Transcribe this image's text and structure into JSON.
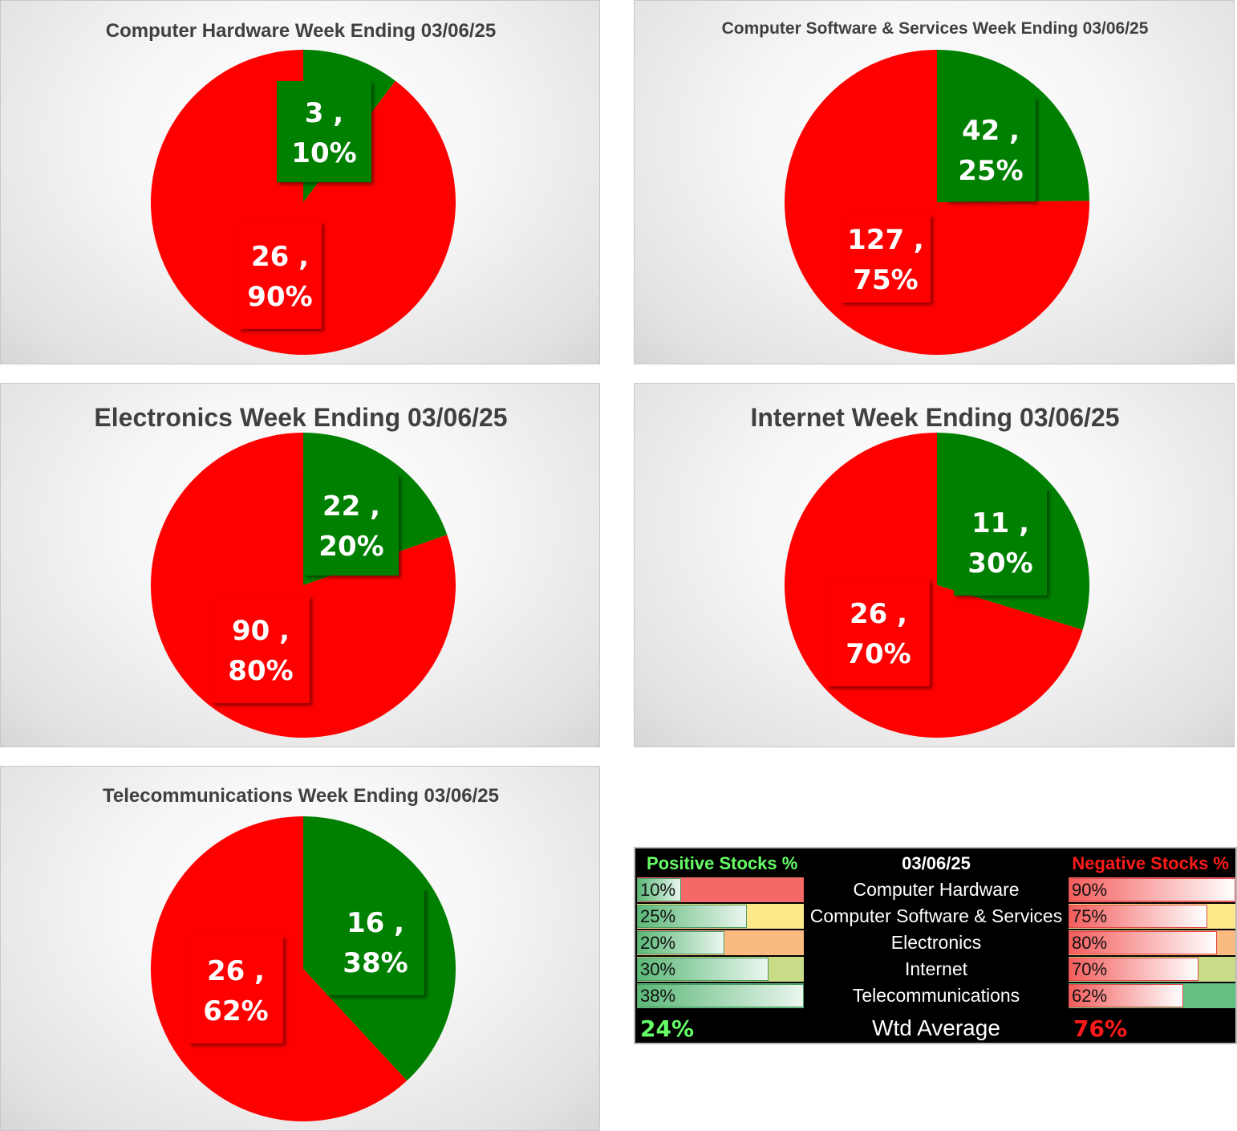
{
  "colors": {
    "positive": "#008000",
    "negative": "#ff0000"
  },
  "chart_data": [
    {
      "type": "pie",
      "title": "Computer Hardware Week Ending 03/06/25",
      "slices": [
        {
          "value": 3,
          "pct": "10%"
        },
        {
          "value": 26,
          "pct": "90%"
        }
      ]
    },
    {
      "type": "pie",
      "title": "Computer Software & Services Week Ending 03/06/25",
      "slices": [
        {
          "value": 42,
          "pct": "25%"
        },
        {
          "value": 127,
          "pct": "75%"
        }
      ]
    },
    {
      "type": "pie",
      "title": "Electronics Week Ending 03/06/25",
      "slices": [
        {
          "value": 22,
          "pct": "20%"
        },
        {
          "value": 90,
          "pct": "80%"
        }
      ]
    },
    {
      "type": "pie",
      "title": "Internet Week Ending 03/06/25",
      "slices": [
        {
          "value": 11,
          "pct": "30%"
        },
        {
          "value": 26,
          "pct": "70%"
        }
      ]
    },
    {
      "type": "pie",
      "title": "Telecommunications Week Ending 03/06/25",
      "slices": [
        {
          "value": 16,
          "pct": "38%"
        },
        {
          "value": 26,
          "pct": "62%"
        }
      ]
    }
  ],
  "summary": {
    "positive_header": "Positive Stocks %",
    "date": "03/06/25",
    "negative_header": "Negative Stocks %",
    "rows": [
      {
        "sector": "Computer Hardware",
        "positive": "10%",
        "negative": "90%",
        "positive_level": 0.1,
        "negative_level": 0.9,
        "highlight": "#f46868"
      },
      {
        "sector": "Computer Software & Services",
        "positive": "25%",
        "negative": "75%",
        "positive_level": 0.25,
        "negative_level": 0.75,
        "highlight": "#fde88a"
      },
      {
        "sector": "Electronics",
        "positive": "20%",
        "negative": "80%",
        "positive_level": 0.2,
        "negative_level": 0.8,
        "highlight": "#fbba80"
      },
      {
        "sector": "Internet",
        "positive": "30%",
        "negative": "70%",
        "positive_level": 0.3,
        "negative_level": 0.7,
        "highlight": "#c8dc88"
      },
      {
        "sector": "Telecommunications",
        "positive": "38%",
        "negative": "62%",
        "positive_level": 0.38,
        "negative_level": 0.62,
        "highlight": "#64c080"
      }
    ],
    "avg_label": "Wtd Average",
    "positive_avg": "24%",
    "negative_avg": "76%",
    "header_colors": {
      "positive": "#66ff66",
      "date": "#ffffff",
      "negative": "#ff1a1a"
    }
  }
}
